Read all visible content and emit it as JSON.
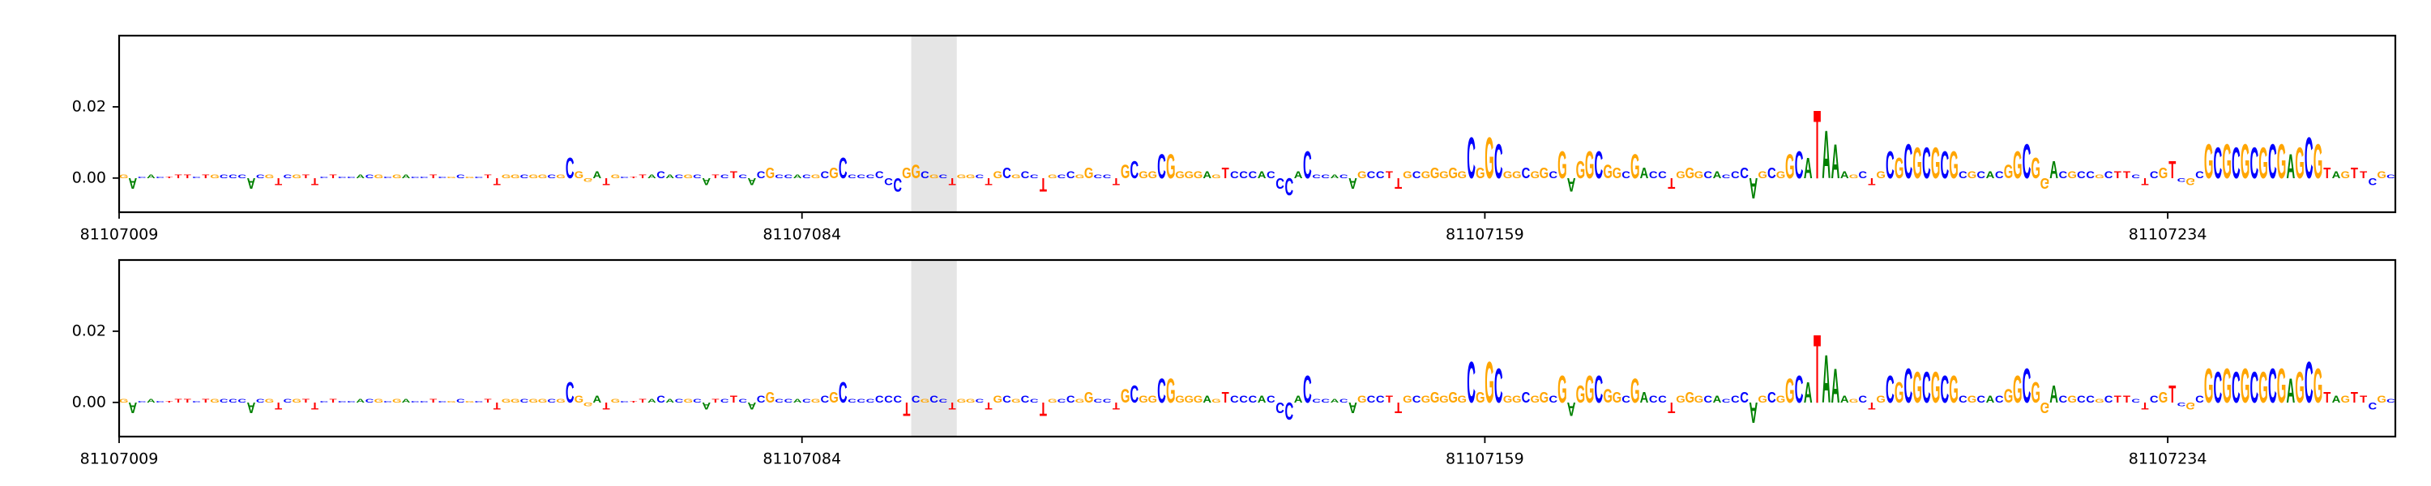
{
  "chart_data": [
    {
      "type": "logo",
      "letters": [
        "G",
        "A",
        "C",
        "A",
        "C",
        "T",
        "T",
        "T",
        "C",
        "T",
        "G",
        "C",
        "C",
        "C",
        "A",
        "C",
        "G",
        "T",
        "C",
        "G",
        "T",
        "T",
        "C",
        "T",
        "C",
        "C",
        "A",
        "C",
        "G",
        "C",
        "G",
        "A",
        "C",
        "C",
        "T",
        "C",
        "G",
        "C",
        "G",
        "C",
        "T",
        "T",
        "G",
        "G",
        "C",
        "G",
        "G",
        "C",
        "G",
        "C",
        "G",
        "G",
        "A",
        "T",
        "G",
        "C",
        "T",
        "T",
        "A",
        "C",
        "A",
        "C",
        "G",
        "C",
        "A",
        "T",
        "C",
        "T",
        "C",
        "A",
        "C",
        "G",
        "C",
        "C",
        "A",
        "C",
        "G",
        "C",
        "G",
        "C",
        "C",
        "C",
        "C",
        "C",
        "C",
        "C",
        "G",
        "G",
        "C",
        "G",
        "C",
        "T",
        "G",
        "G",
        "C",
        "T",
        "G",
        "C",
        "G",
        "C",
        "C",
        "T",
        "G",
        "C",
        "C",
        "G",
        "G",
        "C",
        "C",
        "T",
        "G",
        "C",
        "G",
        "G",
        "C",
        "G",
        "G",
        "G",
        "G",
        "A",
        "G",
        "T",
        "C",
        "C",
        "C",
        "A",
        "C",
        "C",
        "C",
        "A",
        "C",
        "C",
        "C",
        "A",
        "C",
        "A",
        "G",
        "C",
        "C",
        "T",
        "T",
        "G",
        "C",
        "G",
        "G",
        "G",
        "G",
        "G",
        "C",
        "G",
        "G",
        "C",
        "G",
        "G",
        "C",
        "G",
        "G",
        "C",
        "G",
        "A",
        "G",
        "G",
        "C",
        "G",
        "G",
        "C",
        "G",
        "A",
        "C",
        "C",
        "T",
        "G",
        "G",
        "G",
        "C",
        "A",
        "C",
        "C",
        "C",
        "A",
        "G",
        "C",
        "G",
        "G",
        "C",
        "A",
        "T",
        "A",
        "A",
        "A",
        "G",
        "C",
        "T",
        "G",
        "C",
        "G",
        "C",
        "G",
        "C",
        "G",
        "C",
        "G",
        "C",
        "G",
        "C",
        "A",
        "C",
        "G",
        "G",
        "C",
        "G",
        "G",
        "A",
        "C",
        "G",
        "C",
        "C",
        "G",
        "C",
        "T",
        "T",
        "C",
        "T",
        "C",
        "G",
        "T",
        "C",
        "G",
        "C",
        "G",
        "C",
        "G",
        "C",
        "G",
        "C",
        "G",
        "C",
        "G",
        "A",
        "G",
        "C",
        "G",
        "T",
        "A",
        "G",
        "T",
        "T",
        "C",
        "G",
        "C"
      ],
      "values": [
        0.001,
        -0.003,
        0.0005,
        0.001,
        0.0005,
        0.0005,
        0.001,
        0.001,
        0.0005,
        0.001,
        0.001,
        0.001,
        0.001,
        0.001,
        -0.003,
        0.001,
        0.001,
        -0.002,
        0.001,
        0.001,
        0.001,
        -0.002,
        0.0005,
        0.001,
        0.0005,
        0.0005,
        0.001,
        0.001,
        0.001,
        0.0005,
        0.001,
        0.001,
        0.0005,
        0.0005,
        0.001,
        0.0005,
        0.0005,
        0.001,
        0.0005,
        0.0005,
        0.001,
        -0.002,
        0.001,
        0.001,
        0.001,
        0.001,
        0.001,
        0.001,
        0.001,
        0.006,
        0.002,
        -0.001,
        0.002,
        -0.002,
        0.001,
        0.0005,
        0.0005,
        0.001,
        0.001,
        0.002,
        0.001,
        0.001,
        0.001,
        0.001,
        -0.002,
        0.001,
        0.001,
        0.002,
        0.001,
        -0.002,
        0.002,
        0.003,
        0.001,
        0.001,
        0.001,
        0.001,
        0.001,
        0.002,
        0.003,
        0.006,
        0.001,
        0.001,
        0.001,
        0.002,
        -0.002,
        -0.004,
        0.003,
        0.004,
        0.002,
        0.001,
        0.001,
        -0.002,
        0.001,
        0.001,
        0.001,
        -0.002,
        0.002,
        0.003,
        0.001,
        0.002,
        0.001,
        -0.004,
        0.001,
        0.001,
        0.002,
        0.001,
        0.003,
        0.001,
        0.001,
        -0.002,
        0.004,
        0.005,
        0.002,
        0.002,
        0.007,
        0.007,
        0.002,
        0.002,
        0.002,
        0.002,
        0.001,
        0.003,
        0.002,
        0.002,
        0.002,
        0.002,
        0.002,
        -0.003,
        -0.005,
        0.002,
        0.008,
        0.001,
        0.001,
        0.001,
        0.001,
        -0.003,
        0.002,
        0.002,
        0.002,
        0.002,
        -0.003,
        0.002,
        0.002,
        0.002,
        0.003,
        0.002,
        0.003,
        0.002,
        0.012,
        0.003,
        0.012,
        0.01,
        0.002,
        0.002,
        0.003,
        0.002,
        0.003,
        0.002,
        0.008,
        -0.004,
        0.005,
        0.008,
        0.008,
        0.004,
        0.003,
        0.002,
        0.007,
        0.003,
        0.002,
        0.002,
        -0.003,
        0.002,
        0.003,
        0.002,
        0.002,
        0.002,
        0.001,
        0.002,
        0.003,
        -0.006,
        0.002,
        0.003,
        0.002,
        0.007,
        0.008,
        0.006,
        0.02,
        0.014,
        0.01,
        0.002,
        0.001,
        0.002,
        -0.002,
        0.002,
        0.008,
        0.006,
        0.01,
        0.009,
        0.009,
        0.009,
        0.008,
        0.008,
        0.002,
        0.002,
        0.002,
        0.002,
        0.002,
        0.004,
        0.008,
        0.01,
        0.006,
        -0.003,
        0.005,
        0.002,
        0.002,
        0.002,
        0.002,
        0.001,
        0.002,
        0.002,
        0.002,
        0.001,
        -0.002,
        0.002,
        0.003,
        0.005,
        -0.001,
        -0.002,
        0.002,
        0.01,
        0.009,
        0.01,
        0.009,
        0.01,
        0.009,
        0.009,
        0.01,
        0.01,
        0.007,
        0.009,
        0.012,
        0.01,
        0.003,
        0.002,
        0.002,
        0.003,
        0.002,
        -0.002,
        0.002,
        0.001
      ],
      "letter_colors": {
        "A": "#008000",
        "C": "#0000ff",
        "G": "#ffa500",
        "T": "#ff0000"
      },
      "highlight": [
        81107096,
        81107101
      ],
      "highlight_color": "#e5e5e5",
      "xlim": [
        81107009,
        81107259
      ],
      "xticks": [
        81107009,
        81107084,
        81107159,
        81107234
      ],
      "ylim": [
        -0.0096,
        0.04
      ],
      "yticks": [
        {
          "value": 0,
          "label": "0.00"
        },
        {
          "value": 0.02,
          "label": "0.02"
        }
      ]
    },
    {
      "type": "logo",
      "letters": [
        "G",
        "A",
        "C",
        "A",
        "C",
        "T",
        "T",
        "T",
        "C",
        "T",
        "G",
        "C",
        "C",
        "C",
        "A",
        "C",
        "G",
        "T",
        "C",
        "G",
        "T",
        "T",
        "C",
        "T",
        "C",
        "C",
        "A",
        "C",
        "G",
        "C",
        "G",
        "A",
        "C",
        "C",
        "T",
        "C",
        "G",
        "C",
        "G",
        "C",
        "T",
        "T",
        "G",
        "G",
        "C",
        "G",
        "G",
        "C",
        "G",
        "C",
        "G",
        "G",
        "A",
        "T",
        "G",
        "C",
        "T",
        "T",
        "A",
        "C",
        "A",
        "C",
        "G",
        "C",
        "A",
        "T",
        "C",
        "T",
        "C",
        "A",
        "C",
        "G",
        "C",
        "C",
        "A",
        "C",
        "G",
        "C",
        "G",
        "C",
        "C",
        "C",
        "C",
        "C",
        "C",
        "C",
        "T",
        "C",
        "G",
        "C",
        "C",
        "T",
        "G",
        "G",
        "C",
        "T",
        "G",
        "C",
        "G",
        "C",
        "C",
        "T",
        "G",
        "C",
        "C",
        "G",
        "G",
        "C",
        "C",
        "T",
        "G",
        "C",
        "G",
        "G",
        "C",
        "G",
        "G",
        "G",
        "G",
        "A",
        "G",
        "T",
        "C",
        "C",
        "C",
        "A",
        "C",
        "C",
        "C",
        "A",
        "C",
        "C",
        "C",
        "A",
        "C",
        "A",
        "G",
        "C",
        "C",
        "T",
        "T",
        "G",
        "C",
        "G",
        "G",
        "G",
        "G",
        "G",
        "C",
        "G",
        "G",
        "C",
        "G",
        "G",
        "C",
        "G",
        "G",
        "C",
        "G",
        "A",
        "G",
        "G",
        "C",
        "G",
        "G",
        "C",
        "G",
        "A",
        "C",
        "C",
        "T",
        "G",
        "G",
        "G",
        "C",
        "A",
        "C",
        "C",
        "C",
        "A",
        "G",
        "C",
        "G",
        "G",
        "C",
        "A",
        "T",
        "A",
        "A",
        "A",
        "G",
        "C",
        "T",
        "G",
        "C",
        "G",
        "C",
        "G",
        "C",
        "G",
        "C",
        "G",
        "C",
        "G",
        "C",
        "A",
        "C",
        "G",
        "G",
        "C",
        "G",
        "G",
        "A",
        "C",
        "G",
        "C",
        "C",
        "G",
        "C",
        "T",
        "T",
        "C",
        "T",
        "C",
        "G",
        "T",
        "C",
        "G",
        "C",
        "G",
        "C",
        "G",
        "C",
        "G",
        "C",
        "G",
        "C",
        "G",
        "A",
        "G",
        "C",
        "G",
        "T",
        "A",
        "G",
        "T",
        "T",
        "C",
        "G",
        "C"
      ],
      "values": [
        0.001,
        -0.003,
        0.0005,
        0.001,
        0.0005,
        0.0005,
        0.001,
        0.001,
        0.0005,
        0.001,
        0.001,
        0.001,
        0.001,
        0.001,
        -0.003,
        0.001,
        0.001,
        -0.002,
        0.001,
        0.001,
        0.001,
        -0.002,
        0.0005,
        0.001,
        0.0005,
        0.0005,
        0.001,
        0.001,
        0.001,
        0.0005,
        0.001,
        0.001,
        0.0005,
        0.0005,
        0.001,
        0.0005,
        0.0005,
        0.001,
        0.0005,
        0.0005,
        0.001,
        -0.002,
        0.001,
        0.001,
        0.001,
        0.001,
        0.001,
        0.001,
        0.001,
        0.006,
        0.002,
        -0.001,
        0.002,
        -0.002,
        0.001,
        0.0005,
        0.0005,
        0.001,
        0.001,
        0.002,
        0.001,
        0.001,
        0.001,
        0.001,
        -0.002,
        0.001,
        0.001,
        0.002,
        0.001,
        -0.002,
        0.002,
        0.003,
        0.001,
        0.001,
        0.001,
        0.001,
        0.001,
        0.002,
        0.003,
        0.006,
        0.001,
        0.001,
        0.001,
        0.002,
        0.002,
        0.002,
        -0.004,
        0.002,
        0.001,
        0.002,
        0.001,
        -0.002,
        0.001,
        0.001,
        0.001,
        -0.002,
        0.002,
        0.002,
        0.001,
        0.002,
        0.001,
        -0.004,
        0.001,
        0.001,
        0.002,
        0.001,
        0.003,
        0.001,
        0.001,
        -0.002,
        0.004,
        0.005,
        0.002,
        0.002,
        0.007,
        0.007,
        0.002,
        0.002,
        0.002,
        0.002,
        0.001,
        0.003,
        0.002,
        0.002,
        0.002,
        0.002,
        0.002,
        -0.003,
        -0.005,
        0.002,
        0.008,
        0.001,
        0.001,
        0.001,
        0.001,
        -0.003,
        0.002,
        0.002,
        0.002,
        0.002,
        -0.003,
        0.002,
        0.002,
        0.002,
        0.003,
        0.002,
        0.003,
        0.002,
        0.012,
        0.003,
        0.012,
        0.01,
        0.002,
        0.002,
        0.003,
        0.002,
        0.003,
        0.002,
        0.008,
        -0.004,
        0.005,
        0.008,
        0.008,
        0.004,
        0.003,
        0.002,
        0.007,
        0.003,
        0.002,
        0.002,
        -0.003,
        0.002,
        0.003,
        0.002,
        0.002,
        0.002,
        0.001,
        0.002,
        0.003,
        -0.006,
        0.002,
        0.003,
        0.002,
        0.007,
        0.008,
        0.006,
        0.02,
        0.014,
        0.01,
        0.002,
        0.001,
        0.002,
        -0.002,
        0.002,
        0.008,
        0.006,
        0.01,
        0.009,
        0.009,
        0.009,
        0.008,
        0.008,
        0.002,
        0.002,
        0.002,
        0.002,
        0.002,
        0.004,
        0.008,
        0.01,
        0.006,
        -0.003,
        0.005,
        0.002,
        0.002,
        0.002,
        0.002,
        0.001,
        0.002,
        0.002,
        0.002,
        0.001,
        -0.002,
        0.002,
        0.003,
        0.005,
        -0.001,
        -0.002,
        0.002,
        0.01,
        0.009,
        0.01,
        0.009,
        0.01,
        0.009,
        0.009,
        0.01,
        0.01,
        0.007,
        0.009,
        0.012,
        0.01,
        0.003,
        0.002,
        0.002,
        0.003,
        0.002,
        -0.002,
        0.002,
        0.001
      ],
      "letter_colors": {
        "A": "#008000",
        "C": "#0000ff",
        "G": "#ffa500",
        "T": "#ff0000"
      },
      "highlight": [
        81107096,
        81107101
      ],
      "highlight_color": "#e5e5e5",
      "xlim": [
        81107009,
        81107259
      ],
      "xticks": [
        81107009,
        81107084,
        81107159,
        81107234
      ],
      "ylim": [
        -0.0096,
        0.04
      ],
      "yticks": [
        {
          "value": 0,
          "label": "0.00"
        },
        {
          "value": 0.02,
          "label": "0.02"
        }
      ]
    }
  ]
}
